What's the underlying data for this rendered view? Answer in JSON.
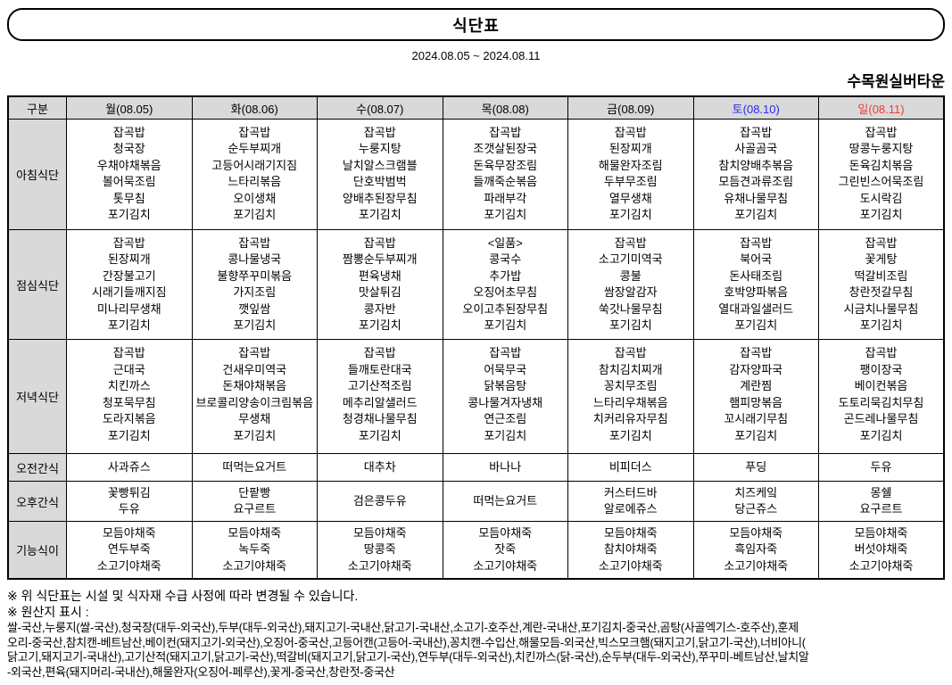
{
  "header": {
    "title": "식단표",
    "date_range": "2024.08.05 ~ 2024.08.11",
    "facility": "수목원실버타운"
  },
  "table": {
    "corner_label": "구분",
    "columns": [
      {
        "label": "월(08.05)",
        "color": "#000000"
      },
      {
        "label": "화(08.06)",
        "color": "#000000"
      },
      {
        "label": "수(08.07)",
        "color": "#000000"
      },
      {
        "label": "목(08.08)",
        "color": "#000000"
      },
      {
        "label": "금(08.09)",
        "color": "#000000"
      },
      {
        "label": "토(08.10)",
        "color": "#2b2bf2"
      },
      {
        "label": "일(08.11)",
        "color": "#f23b3b"
      }
    ],
    "rows": [
      {
        "label": "아침식단",
        "css": "row-breakfast",
        "cells": [
          "잡곡밥\n청국장\n우채야채볶음\n볼어묵조림\n톳무침\n포기김치",
          "잡곡밥\n순두부찌개\n고등어시래기지짐\n느타리볶음\n오이생채\n포기김치",
          "잡곡밥\n누룽지탕\n날치알스크램블\n단호박범벅\n양배추된장무침\n포기김치",
          "잡곡밥\n조갯살된장국\n돈육무장조림\n들깨죽순볶음\n파래부각\n포기김치",
          "잡곡밥\n된장찌개\n해물완자조림\n두부무조림\n열무생채\n포기김치",
          "잡곡밥\n사골곰국\n참치양배추볶음\n모듬견과류조림\n유채나물무침\n포기김치",
          "잡곡밥\n땅콩누룽지탕\n돈육김치볶음\n그린빈스어묵조림\n도시락김\n포기김치"
        ]
      },
      {
        "label": "점심식단",
        "css": "row-lunch",
        "cells": [
          "잡곡밥\n된장찌개\n간장불고기\n시래기들깨지짐\n미나리무생채\n포기김치",
          "잡곡밥\n콩나물냉국\n불향쭈꾸미볶음\n가지조림\n깻잎쌈\n포기김치",
          "잡곡밥\n짬뽕순두부찌개\n편육냉채\n맛살튀김\n콩자반\n포기김치",
          "<일품>\n콩국수\n추가밥\n오징어초무침\n오이고추된장무침\n포기김치",
          "잡곡밥\n소고기미역국\n콩불\n쌈장알감자\n쑥갓나물무침\n포기김치",
          "잡곡밥\n북어국\n돈사태조림\n호박양파볶음\n열대과일샐러드\n포기김치",
          "잡곡밥\n꽃게탕\n떡갈비조림\n창란젓갈무침\n시금치나물무침\n포기김치"
        ]
      },
      {
        "label": "저녁식단",
        "css": "row-dinner",
        "cells": [
          "잡곡밥\n근대국\n치킨까스\n청포묵무침\n도라지볶음\n포기김치",
          "잡곡밥\n건새우미역국\n돈채야채볶음\n브로콜리양송이크림볶음\n무생채\n포기김치",
          "잡곡밥\n들깨토란대국\n고기산적조림\n메추리알샐러드\n청경채나물무침\n포기김치",
          "잡곡밥\n어묵무국\n닭볶음탕\n콩나물겨자냉채\n연근조림\n포기김치",
          "잡곡밥\n참치김치찌개\n꽁치무조림\n느타리우채볶음\n치커리유자무침\n포기김치",
          "잡곡밥\n감자양파국\n계란찜\n햄피망볶음\n꼬시래기무침\n포기김치",
          "잡곡밥\n팽이장국\n베이컨볶음\n도토리묵김치무침\n곤드레나물무침\n포기김치"
        ]
      },
      {
        "label": "오전간식",
        "css": "row-snack-am",
        "cells": [
          "사과쥬스",
          "떠먹는요거트",
          "대추차",
          "바나나",
          "비피더스",
          "푸딩",
          "두유"
        ]
      },
      {
        "label": "오후간식",
        "css": "row-snack-pm",
        "cells": [
          "꽃빵튀김\n두유",
          "단팥빵\n요구르트",
          "검은콩두유",
          "떠먹는요거트",
          "커스터드바\n알로에쥬스",
          "치즈케잌\n당근쥬스",
          "몽쉘\n요구르트"
        ]
      },
      {
        "label": "기능식이",
        "css": "row-functional",
        "cells": [
          "모듬야채죽\n연두부죽\n소고기야채죽",
          "모듬야채죽\n녹두죽\n소고기야채죽",
          "모듬야채죽\n땅콩죽\n소고기야채죽",
          "모듬야채죽\n잣죽\n소고기야채죽",
          "모듬야채죽\n참치야채죽\n소고기야채죽",
          "모듬야채죽\n흑임자죽\n소고기야채죽",
          "모듬야채죽\n버섯야채죽\n소고기야채죽"
        ]
      }
    ]
  },
  "footer": {
    "note1": "※ 위 식단표는 시설 및 식자재 수급 사정에 따라 변경될 수 있습니다.",
    "note2": "※ 원산지 표시 :",
    "origin_lines": [
      "쌀-국산,누룽지(쌀-국산),청국장(대두-외국산),두부(대두-외국산),돼지고기-국내산,닭고기-국내산,소고기-호주산,계란-국내산,포기김치-중국산,곰탕(사골엑기스-호주산),훈제",
      "오리-중국산,참치캔-베트남산,베이컨(돼지고기-외국산),오징어-중국산,고등어캔(고등어-국내산),꽁치캔-수입산,해물모듬-외국산,빅스모크햄(돼지고기,닭고기-국산),너비아니(",
      "닭고기,돼지고기-국내산),고기산적(돼지고기,닭고기-국산),떡갈비(돼지고기,닭고기-국산),연두부(대두-외국산),치킨까스(닭-국산),순두부(대두-외국산),쭈꾸미-베트남산,날치알",
      "-외국산,편육(돼지머리-국내산),해물완자(오징어-페루산),꽃게-중국산,창란젓-중국산"
    ]
  }
}
